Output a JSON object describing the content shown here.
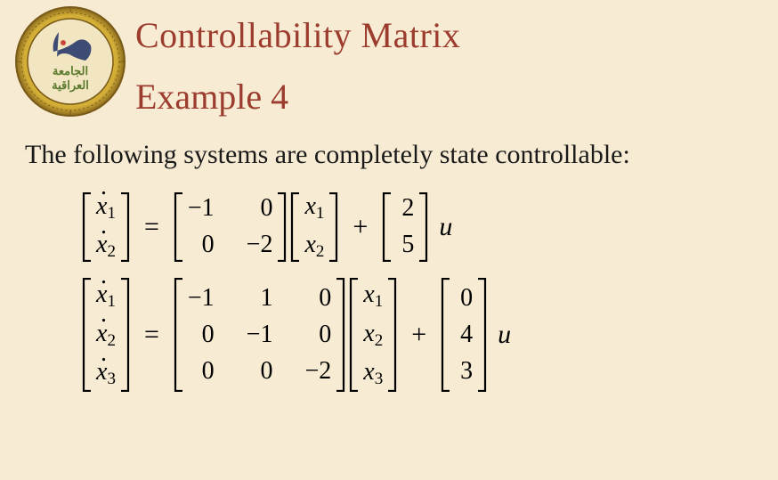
{
  "header": {
    "title": "Controllability Matrix",
    "subtitle": "Example 4",
    "title_color": "#9c3c2e",
    "logo": {
      "outer_ring_color": "#b38a2e",
      "inner_ring_color": "#d4af37",
      "seal_bg": "#f2e6c2",
      "map_color": "#2a3a6b",
      "text_color": "#6b4a1a",
      "arabic_top": "الجامعة",
      "arabic_bottom": "العراقية"
    }
  },
  "body": {
    "text": "The following systems are completely state controllable:",
    "text_color": "#1a1a1a",
    "fontsize": 30
  },
  "background_color": "#f7ecd3",
  "equations": [
    {
      "lhs_dot": [
        "x1",
        "x2"
      ],
      "A": [
        [
          "-1",
          "0"
        ],
        [
          "0",
          "-2"
        ]
      ],
      "x": [
        "x1",
        "x2"
      ],
      "B": [
        "2",
        "5"
      ],
      "input": "u"
    },
    {
      "lhs_dot": [
        "x1",
        "x2",
        "x3"
      ],
      "A": [
        [
          "-1",
          "1",
          "0"
        ],
        [
          "0",
          "-1",
          "0"
        ],
        [
          "0",
          "0",
          "-2"
        ]
      ],
      "x": [
        "x1",
        "x2",
        "x3"
      ],
      "B": [
        "0",
        "4",
        "3"
      ],
      "input": "u"
    }
  ]
}
